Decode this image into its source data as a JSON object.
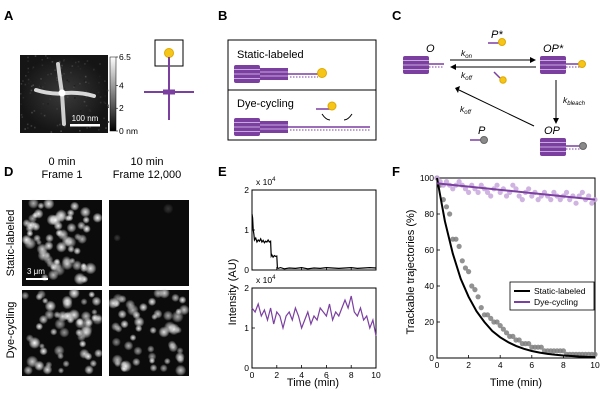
{
  "panels": {
    "A": {
      "letter": "A",
      "scale_bar": "100 nm",
      "colorbar_ticks": [
        "6.5",
        "4",
        "2",
        "0 nm"
      ],
      "colorbar_values": [
        6.5,
        4,
        2,
        0
      ],
      "colorbar_max": 6.5
    },
    "B": {
      "letter": "B",
      "static_label": "Static-labeled",
      "cycling_label": "Dye-cycling"
    },
    "C": {
      "letter": "C",
      "state_O": "O",
      "state_Pstar": "P*",
      "state_OPstar": "OP*",
      "state_OP": "OP",
      "state_P": "P",
      "k_on": "k",
      "k_on_sub": "on",
      "k_off": "k",
      "k_off_sub": "off",
      "k_bleach": "k",
      "k_bleach_sub": "bleach",
      "k_off2": "k",
      "k_off2_sub": "off"
    },
    "D": {
      "letter": "D",
      "col1_line1": "0 min",
      "col1_line2": "Frame 1",
      "col2_line1": "10 min",
      "col2_line2": "Frame 12,000",
      "row1_label": "Static-labeled",
      "row2_label": "Dye-cycling",
      "scale_bar": "3 μm"
    },
    "E": {
      "letter": "E",
      "ylabel": "Intensity (AU)",
      "xlabel": "Time (min)",
      "multiplier_top": "x 10",
      "multiplier_top_exp": "4",
      "multiplier_bottom": "x 10",
      "multiplier_bottom_exp": "4"
    },
    "F": {
      "letter": "F",
      "ylabel": "Trackable trajectories (%)",
      "xlabel": "Time (min)",
      "legend": [
        "Static-labeled",
        "Dye-cycling"
      ]
    }
  },
  "colors": {
    "purple": "#7b3fa0",
    "light_purple": "#c7a6dc",
    "gray_dots": "#7f7f7f",
    "yellow": "#f5c518",
    "black": "#000000"
  },
  "chart_data": [
    {
      "type": "line",
      "panel": "E-top",
      "multiplier": 10000,
      "xlim": [
        0,
        10
      ],
      "ylim": [
        0,
        2
      ],
      "x_ticks": [
        0,
        2,
        4,
        6,
        8,
        10
      ],
      "y_ticks": [
        0,
        1,
        2
      ],
      "series": [
        {
          "color": "#000000",
          "x": [
            0,
            0.05,
            0.1,
            0.15,
            0.2,
            0.3,
            0.4,
            0.5,
            0.6,
            0.7,
            0.8,
            0.9,
            1.0,
            1.1,
            1.2,
            1.3,
            1.4,
            1.5,
            1.55,
            1.6,
            1.7,
            1.8,
            1.9,
            2.0,
            2.05,
            2.1,
            2.3,
            2.6,
            3.0,
            3.5,
            4.0,
            4.5,
            5.0,
            5.5,
            6.0,
            6.5,
            7.0,
            7.5,
            8.0,
            8.5,
            9.0,
            9.5,
            10.0
          ],
          "y": [
            1.4,
            1.3,
            1.0,
            0.9,
            0.75,
            0.8,
            0.7,
            0.75,
            0.72,
            0.78,
            0.7,
            0.74,
            0.68,
            0.72,
            0.7,
            0.75,
            0.7,
            0.72,
            0.35,
            0.38,
            0.32,
            0.36,
            0.34,
            0.35,
            0.05,
            0.04,
            0.06,
            0.03,
            0.05,
            0.04,
            0.06,
            0.03,
            0.05,
            0.04,
            0.06,
            0.05,
            0.04,
            0.05,
            0.06,
            0.04,
            0.05,
            0.06,
            0.05
          ]
        }
      ]
    },
    {
      "type": "line",
      "panel": "E-bottom",
      "multiplier": 10000,
      "xlim": [
        0,
        10
      ],
      "ylim": [
        0,
        2
      ],
      "x_ticks": [
        0,
        2,
        4,
        6,
        8,
        10
      ],
      "x_tick_labels": [
        "0",
        "2",
        "4",
        "6",
        "8",
        "10"
      ],
      "y_ticks": [
        0,
        1,
        2
      ],
      "series": [
        {
          "color": "#7b3fa0",
          "x": [
            0,
            0.25,
            0.5,
            0.75,
            1.0,
            1.25,
            1.5,
            1.75,
            2.0,
            2.25,
            2.5,
            2.75,
            3.0,
            3.25,
            3.5,
            3.75,
            4.0,
            4.25,
            4.5,
            4.75,
            5.0,
            5.25,
            5.5,
            5.75,
            6.0,
            6.25,
            6.5,
            6.75,
            7.0,
            7.25,
            7.5,
            7.75,
            8.0,
            8.25,
            8.5,
            8.75,
            9.0,
            9.25,
            9.5,
            9.75,
            10.0
          ],
          "y": [
            1.5,
            1.4,
            1.6,
            1.3,
            1.45,
            1.2,
            1.5,
            1.1,
            1.4,
            1.3,
            1.0,
            1.3,
            1.4,
            1.2,
            1.5,
            1.3,
            1.0,
            1.2,
            1.4,
            1.1,
            1.3,
            1.2,
            1.5,
            1.4,
            1.3,
            1.6,
            1.2,
            1.4,
            1.3,
            1.5,
            1.7,
            1.5,
            1.8,
            1.4,
            1.3,
            1.5,
            1.2,
            1.3,
            1.0,
            1.2,
            0.8
          ]
        }
      ]
    },
    {
      "type": "scatter",
      "panel": "F",
      "xlim": [
        0,
        10
      ],
      "ylim": [
        0,
        100
      ],
      "x_ticks": [
        0,
        2,
        4,
        6,
        8,
        10
      ],
      "y_ticks": [
        0,
        20,
        40,
        60,
        80,
        100
      ],
      "series": [
        {
          "name": "Static-labeled",
          "color": "#7f7f7f",
          "x": [
            0,
            0.2,
            0.4,
            0.6,
            0.8,
            1.0,
            1.2,
            1.4,
            1.6,
            1.8,
            2.0,
            2.2,
            2.4,
            2.6,
            2.8,
            3.0,
            3.2,
            3.4,
            3.6,
            3.8,
            4.0,
            4.2,
            4.4,
            4.6,
            4.8,
            5.0,
            5.2,
            5.4,
            5.6,
            5.8,
            6.0,
            6.2,
            6.4,
            6.6,
            6.8,
            7.0,
            7.2,
            7.4,
            7.6,
            7.8,
            8.0,
            8.2,
            8.4,
            8.6,
            8.8,
            9.0,
            9.2,
            9.4,
            9.6,
            9.8,
            10.0
          ],
          "y": [
            100,
            96,
            88,
            84,
            80,
            66,
            66,
            62,
            54,
            50,
            48,
            40,
            38,
            34,
            28,
            24,
            24,
            22,
            20,
            20,
            18,
            16,
            14,
            12,
            12,
            10,
            10,
            8,
            8,
            8,
            6,
            6,
            6,
            6,
            4,
            4,
            4,
            4,
            4,
            4,
            4,
            2,
            2,
            2,
            2,
            2,
            2,
            2,
            2,
            2,
            2
          ]
        },
        {
          "name": "Dye-cycling",
          "color": "#c7a6dc",
          "x": [
            0,
            0.2,
            0.4,
            0.6,
            0.8,
            1.0,
            1.2,
            1.4,
            1.6,
            1.8,
            2.0,
            2.2,
            2.4,
            2.6,
            2.8,
            3.0,
            3.2,
            3.4,
            3.6,
            3.8,
            4.0,
            4.2,
            4.4,
            4.6,
            4.8,
            5.0,
            5.2,
            5.4,
            5.6,
            5.8,
            6.0,
            6.2,
            6.4,
            6.6,
            6.8,
            7.0,
            7.2,
            7.4,
            7.6,
            7.8,
            8.0,
            8.2,
            8.4,
            8.6,
            8.8,
            9.0,
            9.2,
            9.4,
            9.6,
            9.8,
            10.0
          ],
          "y": [
            100,
            98,
            96,
            98,
            96,
            94,
            96,
            98,
            96,
            94,
            92,
            96,
            94,
            92,
            96,
            94,
            92,
            90,
            94,
            96,
            92,
            94,
            90,
            92,
            96,
            94,
            90,
            88,
            92,
            94,
            90,
            92,
            88,
            90,
            92,
            90,
            88,
            92,
            90,
            88,
            90,
            92,
            88,
            90,
            86,
            90,
            92,
            88,
            90,
            86,
            88
          ]
        }
      ],
      "fits": [
        {
          "name": "Static-labeled",
          "color": "#000000",
          "x": [
            0,
            0.5,
            1,
            1.5,
            2,
            2.5,
            3,
            3.5,
            4,
            4.5,
            5,
            5.5,
            6,
            6.5,
            7,
            7.5,
            8,
            8.5,
            9,
            9.5,
            10
          ],
          "y": [
            100,
            76,
            58,
            44,
            34,
            26,
            20,
            15,
            11.5,
            8.8,
            6.7,
            5.1,
            3.9,
            3.0,
            2.3,
            1.8,
            1.4,
            1.1,
            0.8,
            0.6,
            0.5
          ]
        },
        {
          "name": "Dye-cycling",
          "color": "#7b3fa0",
          "x": [
            0,
            10
          ],
          "y": [
            97,
            88
          ]
        }
      ]
    }
  ]
}
